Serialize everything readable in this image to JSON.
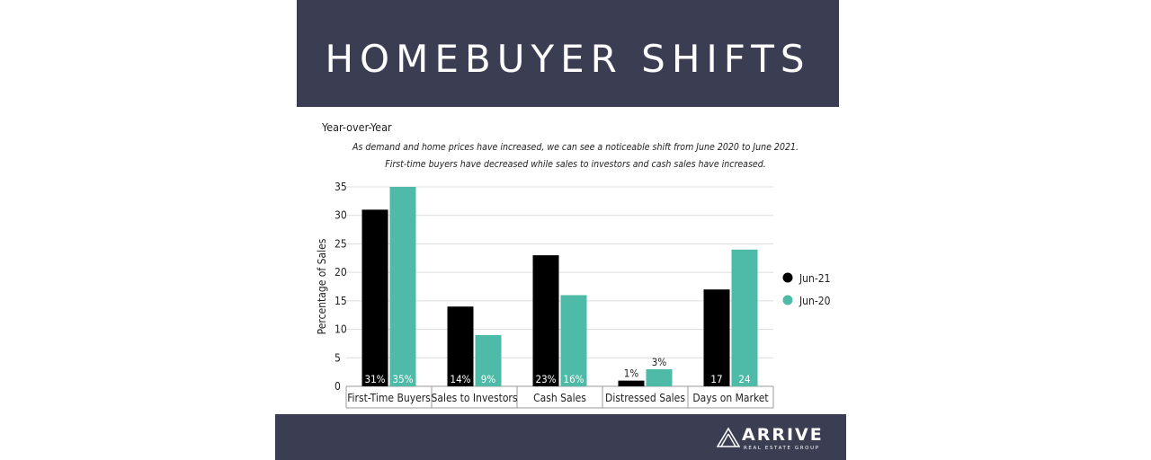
{
  "header": {
    "title": "HOMEBUYER SHIFTS"
  },
  "footer": {
    "brand": "ARRIVE",
    "tagline": "REAL ESTATE GROUP",
    "logo_icon": "mountain-peak-icon"
  },
  "chart_data": {
    "type": "bar",
    "title": "Year-over-Year",
    "subtitle": [
      "As demand and home prices have increased, we can see a noticeable shift from June 2020 to June 2021.",
      "First-time buyers have decreased while sales to investors and cash sales have increased."
    ],
    "xlabel": "",
    "ylabel": "Percentage of Sales",
    "ylim": [
      0,
      35
    ],
    "yticks": [
      0,
      5,
      10,
      15,
      20,
      25,
      30,
      35
    ],
    "categories": [
      "First-Time Buyers",
      "Sales to Investors",
      "Cash Sales",
      "Distressed Sales",
      "Days on Market"
    ],
    "series": [
      {
        "name": "Jun-21",
        "color": "#000000",
        "values": [
          31,
          14,
          23,
          1,
          17
        ],
        "labels": [
          "31%",
          "14%",
          "23%",
          "1%",
          "17"
        ]
      },
      {
        "name": "Jun-20",
        "color": "#4dbba7",
        "values": [
          35,
          9,
          16,
          3,
          24
        ],
        "labels": [
          "35%",
          "9%",
          "16%",
          "3%",
          "24"
        ]
      }
    ],
    "grid": true,
    "legend_position": "right"
  }
}
